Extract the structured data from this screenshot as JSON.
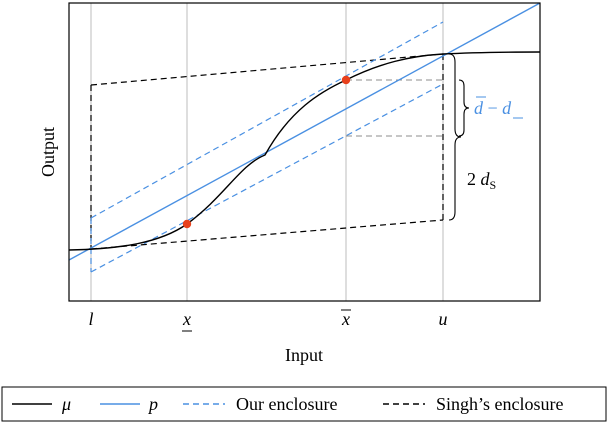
{
  "axes": {
    "xlabel": "Input",
    "ylabel": "Output",
    "ticks": [
      {
        "key": "l",
        "label": "l",
        "decor": "none"
      },
      {
        "key": "xlow",
        "label": "x",
        "decor": "under"
      },
      {
        "key": "xup",
        "label": "x",
        "decor": "over"
      },
      {
        "key": "u",
        "label": "u",
        "decor": "none"
      }
    ]
  },
  "annotations": {
    "gap_upper": "d",
    "gap_minus": " − ",
    "gap_lower": "d",
    "ds_coef": "2 ",
    "ds_var": "d",
    "ds_sub": "S"
  },
  "legend": {
    "mu": "μ",
    "p": "p",
    "ours": "Our enclosure",
    "singh": "Singh’s enclosure"
  },
  "colors": {
    "black": "#000000",
    "blue": "#4a90e2",
    "red": "#e8401c",
    "guide": "#c8c8c8",
    "helper": "#8c8c8c"
  }
}
